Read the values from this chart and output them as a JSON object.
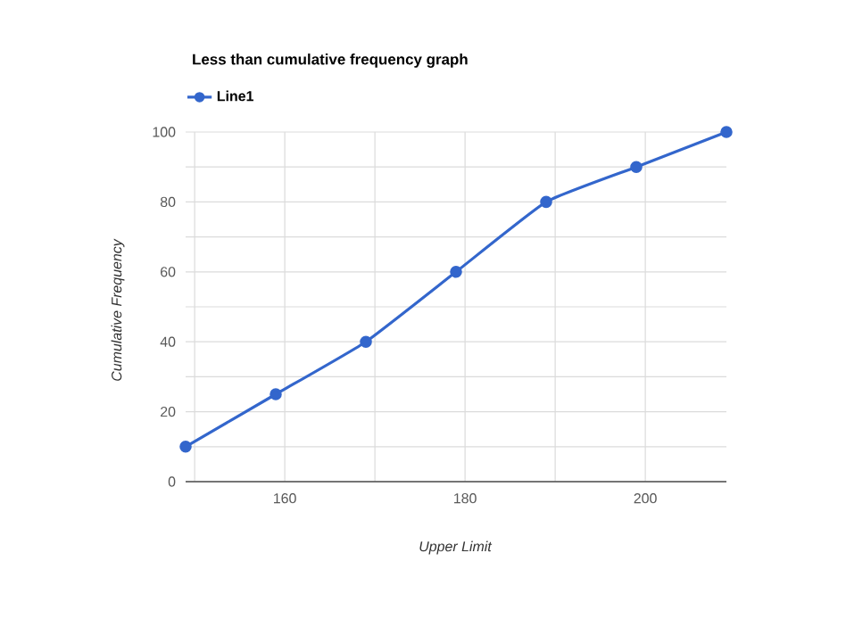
{
  "chart_data": {
    "type": "line",
    "title": "Less than cumulative frequency graph",
    "xlabel": "Upper Limit",
    "ylabel": "Cumulative Frequency",
    "x": [
      149,
      159,
      169,
      179,
      189,
      199,
      209
    ],
    "series": [
      {
        "name": "Line1",
        "color": "#3366cc",
        "values": [
          10,
          25,
          40,
          60,
          80,
          90,
          100
        ]
      }
    ],
    "xlim": [
      149,
      209
    ],
    "xticks": [
      {
        "value": 150,
        "label": null
      },
      160,
      {
        "value": 170,
        "label": null
      },
      180,
      {
        "value": 190,
        "label": null
      },
      200
    ],
    "ylim": [
      0,
      100
    ],
    "yticks": [
      0,
      {
        "value": 10,
        "label": null
      },
      20,
      {
        "value": 30,
        "label": null
      },
      40,
      {
        "value": 50,
        "label": null
      },
      60,
      {
        "value": 70,
        "label": null
      },
      80,
      {
        "value": 90,
        "label": null
      },
      100
    ],
    "grid": true,
    "legend": "top left",
    "marker": "circle",
    "line_style": "solid"
  }
}
